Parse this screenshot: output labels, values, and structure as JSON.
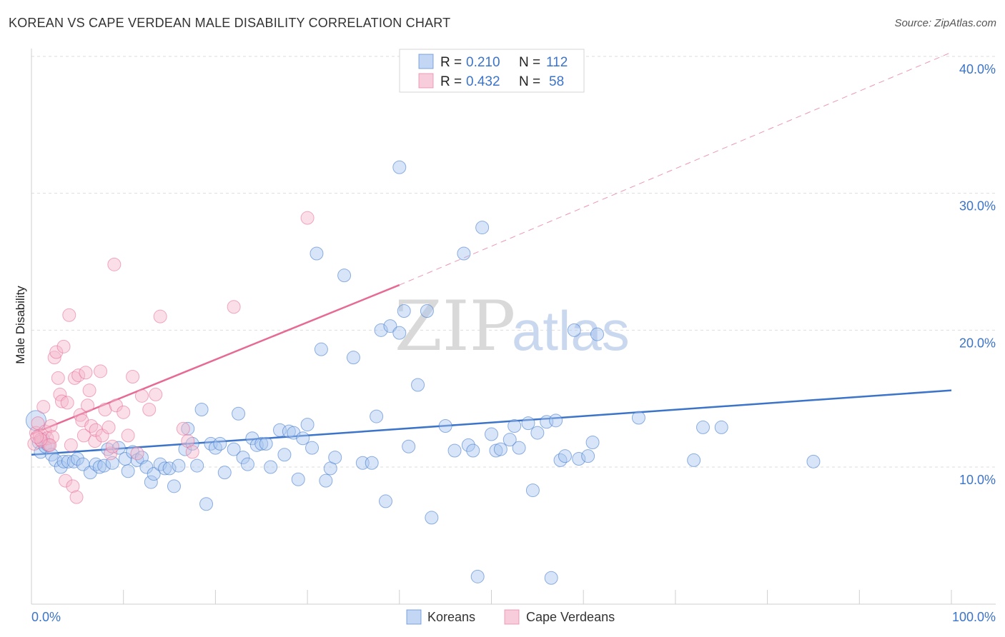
{
  "title": "KOREAN VS CAPE VERDEAN MALE DISABILITY CORRELATION CHART",
  "source": "Source: ZipAtlas.com",
  "watermark": {
    "zip": "ZIP",
    "atlas": "atlas"
  },
  "colors": {
    "blue": "#3b74c9",
    "blue_fill": "#a9c6ef",
    "pink": "#e66a94",
    "pink_fill": "#f5b8cc",
    "grid": "#dddddd"
  },
  "legend": {
    "rows": [
      {
        "r_label": "R =",
        "r_value": "0.210",
        "n_label": "N =",
        "n_value": "112",
        "series": "koreans"
      },
      {
        "r_label": "R =",
        "r_value": "0.432",
        "n_label": "N =",
        "n_value": "58",
        "series": "cape_verdeans"
      }
    ]
  },
  "bottom_legend": {
    "koreans": "Koreans",
    "cape_verdeans": "Cape Verdeans"
  },
  "chart_data": {
    "type": "scatter",
    "title": "KOREAN VS CAPE VERDEAN MALE DISABILITY CORRELATION CHART",
    "xlabel": "",
    "ylabel": "Male Disability",
    "xlim": [
      0,
      100
    ],
    "ylim": [
      0,
      42
    ],
    "x_tick_labels": {
      "left": "0.0%",
      "right": "100.0%"
    },
    "y_ticks": [
      {
        "value": 10,
        "label": "10.0%"
      },
      {
        "value": 20,
        "label": "20.0%"
      },
      {
        "value": 30,
        "label": "30.0%"
      },
      {
        "value": 40,
        "label": "40.0%"
      }
    ],
    "series": [
      {
        "name": "Koreans",
        "color": "#3b74c9",
        "regression": {
          "x0": 0,
          "y0": 10.9,
          "x1": 100,
          "y1": 15.6,
          "dashed_to": null
        },
        "points": [
          [
            0.5,
            13.4
          ],
          [
            0.8,
            11.8
          ],
          [
            1.0,
            11.1
          ],
          [
            1.3,
            12.0
          ],
          [
            1.5,
            11.5
          ],
          [
            1.8,
            11.6
          ],
          [
            2.2,
            10.9
          ],
          [
            2.6,
            10.5
          ],
          [
            3.2,
            10.0
          ],
          [
            3.5,
            10.4
          ],
          [
            4.0,
            10.4
          ],
          [
            4.6,
            10.4
          ],
          [
            5.0,
            10.6
          ],
          [
            5.6,
            10.2
          ],
          [
            6.4,
            9.6
          ],
          [
            7.0,
            10.2
          ],
          [
            7.4,
            10.0
          ],
          [
            7.9,
            10.1
          ],
          [
            8.3,
            11.3
          ],
          [
            8.8,
            10.3
          ],
          [
            9.5,
            11.4
          ],
          [
            10.2,
            10.6
          ],
          [
            10.5,
            9.7
          ],
          [
            11.0,
            11.1
          ],
          [
            11.5,
            10.5
          ],
          [
            12.0,
            10.7
          ],
          [
            12.5,
            10.0
          ],
          [
            13.0,
            8.9
          ],
          [
            13.3,
            9.5
          ],
          [
            14.0,
            10.2
          ],
          [
            14.5,
            9.9
          ],
          [
            15.0,
            9.9
          ],
          [
            15.5,
            8.6
          ],
          [
            16.0,
            10.1
          ],
          [
            16.7,
            11.3
          ],
          [
            17.0,
            12.8
          ],
          [
            17.5,
            11.7
          ],
          [
            18.0,
            10.1
          ],
          [
            18.5,
            14.2
          ],
          [
            19.0,
            7.3
          ],
          [
            19.5,
            11.7
          ],
          [
            20.0,
            11.4
          ],
          [
            20.5,
            11.7
          ],
          [
            21.0,
            9.6
          ],
          [
            22.0,
            11.3
          ],
          [
            22.5,
            13.9
          ],
          [
            23.0,
            10.7
          ],
          [
            23.5,
            10.2
          ],
          [
            24.0,
            12.1
          ],
          [
            24.5,
            11.6
          ],
          [
            25.0,
            11.7
          ],
          [
            25.5,
            11.7
          ],
          [
            26.0,
            10.0
          ],
          [
            27.0,
            12.7
          ],
          [
            27.5,
            10.9
          ],
          [
            28.0,
            12.6
          ],
          [
            28.5,
            12.5
          ],
          [
            29.0,
            9.1
          ],
          [
            29.5,
            12.1
          ],
          [
            30.0,
            13.1
          ],
          [
            30.5,
            11.4
          ],
          [
            31.0,
            25.6
          ],
          [
            31.5,
            18.6
          ],
          [
            32.0,
            9.0
          ],
          [
            32.5,
            9.9
          ],
          [
            33.0,
            10.7
          ],
          [
            34.0,
            24.0
          ],
          [
            35.0,
            18.0
          ],
          [
            36.0,
            10.3
          ],
          [
            37.0,
            10.3
          ],
          [
            38.0,
            20.0
          ],
          [
            37.5,
            13.7
          ],
          [
            38.5,
            7.5
          ],
          [
            39.0,
            20.3
          ],
          [
            40.0,
            19.8
          ],
          [
            40.5,
            21.4
          ],
          [
            40.0,
            31.9
          ],
          [
            41.0,
            11.5
          ],
          [
            42.0,
            16.0
          ],
          [
            43.0,
            21.4
          ],
          [
            43.5,
            6.3
          ],
          [
            45.0,
            13.0
          ],
          [
            46.0,
            11.2
          ],
          [
            47.0,
            25.6
          ],
          [
            47.5,
            11.6
          ],
          [
            48.0,
            11.2
          ],
          [
            48.5,
            2.0
          ],
          [
            49.0,
            27.5
          ],
          [
            50.0,
            12.4
          ],
          [
            50.5,
            11.2
          ],
          [
            51.0,
            11.3
          ],
          [
            52.0,
            12.0
          ],
          [
            53.0,
            11.4
          ],
          [
            54.0,
            13.2
          ],
          [
            54.5,
            8.3
          ],
          [
            55.0,
            12.5
          ],
          [
            56.0,
            13.3
          ],
          [
            56.5,
            1.9
          ],
          [
            57.0,
            13.4
          ],
          [
            57.5,
            10.5
          ],
          [
            58.0,
            10.8
          ],
          [
            59.0,
            20.0
          ],
          [
            59.5,
            10.6
          ],
          [
            60.5,
            10.8
          ],
          [
            61.0,
            11.8
          ],
          [
            61.5,
            19.7
          ],
          [
            66.0,
            13.6
          ],
          [
            72.0,
            10.5
          ],
          [
            73.0,
            12.9
          ],
          [
            75.0,
            12.9
          ],
          [
            85.0,
            10.4
          ],
          [
            52.5,
            13.0
          ]
        ]
      },
      {
        "name": "Cape Verdeans",
        "color": "#e66a94",
        "regression": {
          "x0": 0,
          "y0": 12.4,
          "x1": 40,
          "y1": 23.3,
          "dashed_to": {
            "x": 100,
            "y": 40.3
          }
        },
        "points": [
          [
            0.3,
            11.7
          ],
          [
            0.5,
            12.5
          ],
          [
            0.7,
            13.2
          ],
          [
            0.9,
            12.3
          ],
          [
            1.1,
            11.9
          ],
          [
            1.3,
            14.4
          ],
          [
            1.5,
            12.6
          ],
          [
            1.7,
            12.1
          ],
          [
            1.9,
            11.6
          ],
          [
            2.1,
            13.0
          ],
          [
            2.3,
            12.2
          ],
          [
            2.5,
            18.0
          ],
          [
            2.7,
            18.4
          ],
          [
            2.9,
            16.5
          ],
          [
            3.1,
            15.3
          ],
          [
            3.3,
            14.8
          ],
          [
            3.5,
            18.8
          ],
          [
            3.7,
            9.0
          ],
          [
            3.9,
            14.7
          ],
          [
            4.1,
            21.1
          ],
          [
            4.3,
            11.6
          ],
          [
            4.5,
            8.6
          ],
          [
            4.7,
            16.5
          ],
          [
            4.9,
            7.8
          ],
          [
            5.1,
            16.7
          ],
          [
            5.3,
            13.8
          ],
          [
            5.5,
            13.4
          ],
          [
            5.7,
            12.3
          ],
          [
            5.9,
            16.9
          ],
          [
            6.1,
            14.5
          ],
          [
            6.3,
            15.6
          ],
          [
            6.5,
            13.0
          ],
          [
            6.9,
            11.9
          ],
          [
            7.0,
            12.7
          ],
          [
            7.5,
            17.0
          ],
          [
            7.7,
            12.3
          ],
          [
            8.0,
            14.2
          ],
          [
            8.4,
            12.9
          ],
          [
            8.6,
            11.0
          ],
          [
            8.8,
            11.5
          ],
          [
            9.0,
            24.8
          ],
          [
            9.2,
            14.5
          ],
          [
            10.0,
            14.0
          ],
          [
            10.5,
            12.3
          ],
          [
            11.0,
            16.6
          ],
          [
            11.5,
            11.0
          ],
          [
            12.0,
            15.2
          ],
          [
            12.8,
            14.2
          ],
          [
            13.5,
            15.3
          ],
          [
            14.0,
            21.0
          ],
          [
            16.5,
            12.8
          ],
          [
            17.0,
            11.9
          ],
          [
            17.5,
            11.1
          ],
          [
            22.0,
            21.7
          ],
          [
            30.0,
            28.2
          ],
          [
            2.0,
            11.6
          ],
          [
            1.0,
            12.0
          ],
          [
            0.6,
            12.2
          ]
        ]
      }
    ],
    "legend_position": "top-center"
  }
}
